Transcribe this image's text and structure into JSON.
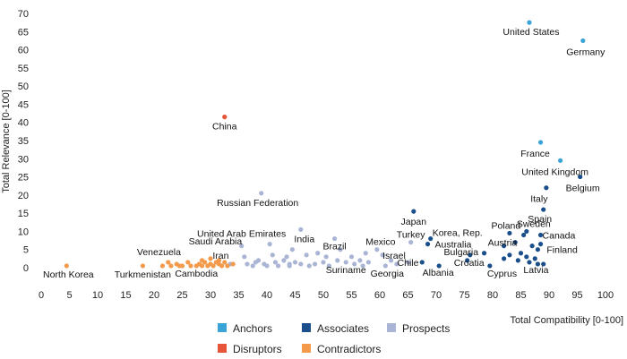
{
  "chart_data": {
    "type": "scatter",
    "title": "",
    "xlabel": "Total Compatibility [0-100]",
    "ylabel": "Total Relevance [0-100]",
    "xlim": [
      0,
      100
    ],
    "ylim": [
      0,
      70
    ],
    "x_ticks": [
      0,
      5,
      10,
      15,
      20,
      25,
      30,
      35,
      40,
      45,
      50,
      55,
      60,
      65,
      70,
      75,
      80,
      85,
      90,
      95,
      100
    ],
    "y_ticks": [
      0,
      5,
      10,
      15,
      20,
      25,
      30,
      35,
      40,
      45,
      50,
      55,
      60,
      65,
      70
    ],
    "grid": false,
    "legend_placement": "bottom",
    "series": [
      {
        "name": "Anchors",
        "color": "#3aa3d8",
        "points": [
          {
            "x": 86.5,
            "y": 67.5,
            "label": "United States"
          },
          {
            "x": 96,
            "y": 62.5,
            "label": "Germany"
          },
          {
            "x": 88.5,
            "y": 34.5,
            "label": "France"
          },
          {
            "x": 92,
            "y": 29.5,
            "label": "United Kingdom"
          }
        ]
      },
      {
        "name": "Associates",
        "color": "#1a4f8b",
        "points": [
          {
            "x": 95.5,
            "y": 25,
            "label": "Belgium"
          },
          {
            "x": 89.5,
            "y": 22,
            "label": "Italy"
          },
          {
            "x": 89,
            "y": 16,
            "label": "Spain"
          },
          {
            "x": 66,
            "y": 15.5,
            "label": "Japan"
          },
          {
            "x": 86,
            "y": 10,
            "label": "Sweden"
          },
          {
            "x": 83,
            "y": 9.5,
            "label": "Poland"
          },
          {
            "x": 88.5,
            "y": 9,
            "label": "Canada"
          },
          {
            "x": 69,
            "y": 8,
            "label": "Korea, Rep."
          },
          {
            "x": 68.5,
            "y": 6.5,
            "label": "Australia"
          },
          {
            "x": 82,
            "y": 6,
            "label": "Austria"
          },
          {
            "x": 88,
            "y": 5,
            "label": "Finland"
          },
          {
            "x": 76,
            "y": 3.5,
            "label": "Bulgaria"
          },
          {
            "x": 75.5,
            "y": 2,
            "label": "Croatia"
          },
          {
            "x": 79.5,
            "y": 0.5,
            "label": "Cyprus"
          },
          {
            "x": 88,
            "y": 1,
            "label": "Latvia"
          },
          {
            "x": 70.5,
            "y": 0.5,
            "label": "Albania"
          },
          {
            "x": 67.5,
            "y": 1.5,
            "label": ""
          },
          {
            "x": 84,
            "y": 7,
            "label": ""
          },
          {
            "x": 85,
            "y": 4,
            "label": ""
          },
          {
            "x": 86,
            "y": 3,
            "label": ""
          },
          {
            "x": 84.5,
            "y": 2,
            "label": ""
          },
          {
            "x": 83,
            "y": 3.5,
            "label": ""
          },
          {
            "x": 85.5,
            "y": 9,
            "label": ""
          },
          {
            "x": 87,
            "y": 6,
            "label": ""
          },
          {
            "x": 87.5,
            "y": 2.5,
            "label": ""
          },
          {
            "x": 89,
            "y": 1,
            "label": ""
          },
          {
            "x": 82,
            "y": 2.5,
            "label": ""
          },
          {
            "x": 86.5,
            "y": 1.5,
            "label": ""
          },
          {
            "x": 78.5,
            "y": 4,
            "label": ""
          },
          {
            "x": 88.5,
            "y": 6.5,
            "label": ""
          }
        ]
      },
      {
        "name": "Prospects",
        "color": "#aab4d4",
        "points": [
          {
            "x": 39,
            "y": 20.5,
            "label": "Russian Federation"
          },
          {
            "x": 46,
            "y": 10.5,
            "label": "India"
          },
          {
            "x": 52,
            "y": 8,
            "label": "Brazil"
          },
          {
            "x": 35.5,
            "y": 6,
            "label": "United Arab Emirates"
          },
          {
            "x": 59.5,
            "y": 5,
            "label": "Mexico"
          },
          {
            "x": 60.5,
            "y": 3.5,
            "label": "Israel"
          },
          {
            "x": 65.5,
            "y": 7,
            "label": "Turkey"
          },
          {
            "x": 65,
            "y": 1.5,
            "label": "Chile"
          },
          {
            "x": 54,
            "y": 1.5,
            "label": "Suriname"
          },
          {
            "x": 61,
            "y": 0.5,
            "label": "Georgia"
          },
          {
            "x": 36,
            "y": 3,
            "label": ""
          },
          {
            "x": 36.5,
            "y": 1,
            "label": ""
          },
          {
            "x": 37.5,
            "y": 0.5,
            "label": ""
          },
          {
            "x": 38,
            "y": 1.5,
            "label": ""
          },
          {
            "x": 39.5,
            "y": 1,
            "label": ""
          },
          {
            "x": 40,
            "y": 0.5,
            "label": ""
          },
          {
            "x": 40.5,
            "y": 6.5,
            "label": ""
          },
          {
            "x": 41,
            "y": 3.5,
            "label": ""
          },
          {
            "x": 41.5,
            "y": 1.5,
            "label": ""
          },
          {
            "x": 42,
            "y": 0.5,
            "label": ""
          },
          {
            "x": 43,
            "y": 2,
            "label": ""
          },
          {
            "x": 44,
            "y": 1,
            "label": ""
          },
          {
            "x": 44.5,
            "y": 5,
            "label": ""
          },
          {
            "x": 45,
            "y": 1.5,
            "label": ""
          },
          {
            "x": 46,
            "y": 1,
            "label": ""
          },
          {
            "x": 47,
            "y": 3.5,
            "label": ""
          },
          {
            "x": 47.5,
            "y": 0.5,
            "label": ""
          },
          {
            "x": 48.5,
            "y": 1,
            "label": ""
          },
          {
            "x": 49,
            "y": 4,
            "label": ""
          },
          {
            "x": 50,
            "y": 1.5,
            "label": ""
          },
          {
            "x": 51,
            "y": 0.5,
            "label": ""
          },
          {
            "x": 52.5,
            "y": 2,
            "label": ""
          },
          {
            "x": 53,
            "y": 5,
            "label": ""
          },
          {
            "x": 55,
            "y": 3,
            "label": ""
          },
          {
            "x": 55.5,
            "y": 1,
            "label": ""
          },
          {
            "x": 56.5,
            "y": 2,
            "label": ""
          },
          {
            "x": 57,
            "y": 0.5,
            "label": ""
          },
          {
            "x": 58,
            "y": 1.5,
            "label": ""
          },
          {
            "x": 62,
            "y": 2,
            "label": ""
          },
          {
            "x": 63,
            "y": 1,
            "label": ""
          },
          {
            "x": 33.5,
            "y": 1,
            "label": ""
          },
          {
            "x": 43.5,
            "y": 3,
            "label": ""
          },
          {
            "x": 38.5,
            "y": 2,
            "label": ""
          },
          {
            "x": 50.5,
            "y": 3,
            "label": ""
          },
          {
            "x": 44,
            "y": 0.5,
            "label": ""
          },
          {
            "x": 57.5,
            "y": 4,
            "label": ""
          }
        ]
      },
      {
        "name": "Disruptors",
        "color": "#e6553a",
        "points": [
          {
            "x": 32.5,
            "y": 41.5,
            "label": "China"
          }
        ]
      },
      {
        "name": "Contradictors",
        "color": "#f39a4b",
        "points": [
          {
            "x": 4.5,
            "y": 0.5,
            "label": "North Korea"
          },
          {
            "x": 18,
            "y": 0.5,
            "label": "Turkmenistan"
          },
          {
            "x": 21.5,
            "y": 0.5,
            "label": "Venezuela"
          },
          {
            "x": 27.5,
            "y": 0.5,
            "label": "Cambodia"
          },
          {
            "x": 31.5,
            "y": 2,
            "label": "Saudi Arabia"
          },
          {
            "x": 31.5,
            "y": 1,
            "label": "Iran"
          },
          {
            "x": 22.5,
            "y": 1.5,
            "label": ""
          },
          {
            "x": 23,
            "y": 0.5,
            "label": ""
          },
          {
            "x": 24,
            "y": 1,
            "label": ""
          },
          {
            "x": 24.5,
            "y": 0.5,
            "label": ""
          },
          {
            "x": 25,
            "y": 0.5,
            "label": ""
          },
          {
            "x": 26.5,
            "y": 0.5,
            "label": ""
          },
          {
            "x": 28,
            "y": 1,
            "label": ""
          },
          {
            "x": 28.5,
            "y": 0.5,
            "label": ""
          },
          {
            "x": 29,
            "y": 1.5,
            "label": ""
          },
          {
            "x": 29.5,
            "y": 0.5,
            "label": ""
          },
          {
            "x": 30,
            "y": 1,
            "label": ""
          },
          {
            "x": 30.5,
            "y": 0.5,
            "label": ""
          },
          {
            "x": 31,
            "y": 1.5,
            "label": ""
          },
          {
            "x": 32,
            "y": 0.5,
            "label": ""
          },
          {
            "x": 32.5,
            "y": 1.5,
            "label": ""
          },
          {
            "x": 33,
            "y": 0.5,
            "label": ""
          },
          {
            "x": 34,
            "y": 1,
            "label": ""
          },
          {
            "x": 30,
            "y": 2.5,
            "label": ""
          },
          {
            "x": 28.5,
            "y": 2,
            "label": ""
          },
          {
            "x": 26,
            "y": 1.5,
            "label": ""
          }
        ]
      }
    ],
    "annotations": [
      {
        "series": "Anchors",
        "index": 0,
        "dx": 2,
        "dy": 14,
        "anchor": "middle"
      },
      {
        "series": "Anchors",
        "index": 1,
        "dx": 3,
        "dy": 16,
        "anchor": "middle"
      },
      {
        "series": "Anchors",
        "index": 2,
        "dx": -6,
        "dy": 16,
        "anchor": "middle"
      },
      {
        "series": "Anchors",
        "index": 3,
        "dx": -6,
        "dy": 16,
        "anchor": "middle"
      },
      {
        "series": "Associates",
        "index": 0,
        "dx": 3,
        "dy": 16,
        "anchor": "middle"
      },
      {
        "series": "Associates",
        "index": 1,
        "dx": -8,
        "dy": 16,
        "anchor": "middle"
      },
      {
        "series": "Associates",
        "index": 2,
        "dx": -4,
        "dy": 14,
        "anchor": "middle"
      },
      {
        "series": "Associates",
        "index": 3,
        "dx": 0,
        "dy": 15,
        "anchor": "middle"
      },
      {
        "series": "Associates",
        "index": 4,
        "dx": 8,
        "dy": -5,
        "anchor": "middle"
      },
      {
        "series": "Associates",
        "index": 5,
        "dx": -4,
        "dy": -5,
        "anchor": "middle"
      },
      {
        "series": "Associates",
        "index": 6,
        "dx": 2,
        "dy": 4,
        "anchor": "start"
      },
      {
        "series": "Associates",
        "index": 7,
        "dx": 2,
        "dy": -3,
        "anchor": "start"
      },
      {
        "series": "Associates",
        "index": 8,
        "dx": 8,
        "dy": 4,
        "anchor": "start"
      },
      {
        "series": "Associates",
        "index": 9,
        "dx": -18,
        "dy": 0,
        "anchor": "start"
      },
      {
        "series": "Associates",
        "index": 10,
        "dx": 10,
        "dy": 4,
        "anchor": "start"
      },
      {
        "series": "Associates",
        "index": 11,
        "dx": -10,
        "dy": 0,
        "anchor": "middle"
      },
      {
        "series": "Associates",
        "index": 12,
        "dx": 2,
        "dy": 6,
        "anchor": "middle"
      },
      {
        "series": "Associates",
        "index": 13,
        "dx": -3,
        "dy": 12,
        "anchor": "start"
      },
      {
        "series": "Associates",
        "index": 14,
        "dx": -16,
        "dy": 10,
        "anchor": "start"
      },
      {
        "series": "Associates",
        "index": 15,
        "dx": -1,
        "dy": 11,
        "anchor": "middle"
      },
      {
        "series": "Prospects",
        "index": 0,
        "dx": -4,
        "dy": 14,
        "anchor": "middle"
      },
      {
        "series": "Prospects",
        "index": 1,
        "dx": 4,
        "dy": 14,
        "anchor": "middle"
      },
      {
        "series": "Prospects",
        "index": 2,
        "dx": 0,
        "dy": 12,
        "anchor": "middle"
      },
      {
        "series": "Prospects",
        "index": 3,
        "dx": 0,
        "dy": -10,
        "anchor": "middle"
      },
      {
        "series": "Prospects",
        "index": 4,
        "dx": 4,
        "dy": -5,
        "anchor": "middle"
      },
      {
        "series": "Prospects",
        "index": 5,
        "dx": 0,
        "dy": 4,
        "anchor": "start"
      },
      {
        "series": "Prospects",
        "index": 6,
        "dx": 0,
        "dy": -5,
        "anchor": "middle"
      },
      {
        "series": "Prospects",
        "index": 7,
        "dx": 0,
        "dy": 4,
        "anchor": "middle"
      },
      {
        "series": "Prospects",
        "index": 8,
        "dx": 0,
        "dy": 12,
        "anchor": "middle"
      },
      {
        "series": "Prospects",
        "index": 9,
        "dx": 2,
        "dy": 12,
        "anchor": "middle"
      },
      {
        "series": "Contradictors",
        "index": 0,
        "dx": 2,
        "dy": 13,
        "anchor": "middle"
      },
      {
        "series": "Contradictors",
        "index": 1,
        "dx": 0,
        "dy": 13,
        "anchor": "middle"
      },
      {
        "series": "Contradictors",
        "index": 2,
        "dx": -4,
        "dy": -12,
        "anchor": "middle"
      },
      {
        "series": "Contradictors",
        "index": 3,
        "dx": 0,
        "dy": 12,
        "anchor": "middle"
      },
      {
        "series": "Contradictors",
        "index": 4,
        "dx": -4,
        "dy": -18,
        "anchor": "middle"
      },
      {
        "series": "Contradictors",
        "index": 5,
        "dx": 2,
        "dy": -6,
        "anchor": "middle"
      },
      {
        "series": "Disruptors",
        "index": 0,
        "dx": 0,
        "dy": 14,
        "anchor": "middle"
      }
    ]
  }
}
